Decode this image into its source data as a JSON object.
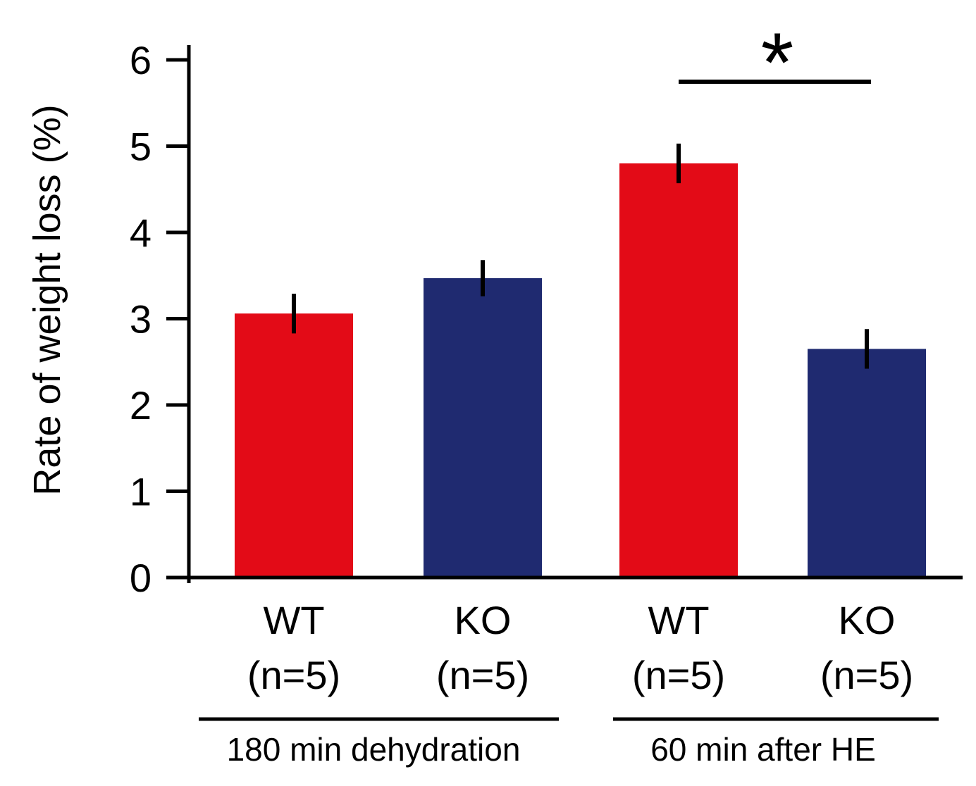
{
  "chart_data": {
    "type": "bar",
    "title": "",
    "xlabel": "",
    "ylabel": "Rate of weight loss (%)",
    "ylim": [
      0,
      6
    ],
    "yticks": [
      "0",
      "1",
      "2",
      "3",
      "4",
      "5",
      "6"
    ],
    "grid": false,
    "categories": [
      {
        "genotype": "WT",
        "n": "(n=5)"
      },
      {
        "genotype": "KO",
        "n": "(n=5)"
      },
      {
        "genotype": "WT",
        "n": "(n=5)"
      },
      {
        "genotype": "KO",
        "n": "(n=5)"
      }
    ],
    "values": [
      3.06,
      3.47,
      4.8,
      2.65
    ],
    "errors": [
      0.23,
      0.21,
      0.23,
      0.23
    ],
    "colors": [
      "#e30b17",
      "#1f2a70",
      "#e30b17",
      "#1f2a70"
    ],
    "groups": [
      {
        "label": "180 min dehydration",
        "bars": [
          0,
          1
        ]
      },
      {
        "label": "60 min after HE",
        "bars": [
          2,
          3
        ]
      }
    ],
    "significance": [
      {
        "bars": [
          2,
          3
        ],
        "symbol": "*"
      }
    ]
  }
}
